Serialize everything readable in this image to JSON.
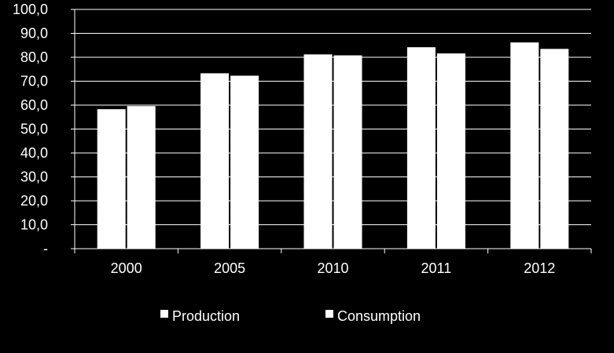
{
  "chart_data": {
    "type": "bar",
    "title": "",
    "xlabel": "",
    "ylabel": "",
    "categories": [
      "2000",
      "2005",
      "2010",
      "2011",
      "2012"
    ],
    "series": [
      {
        "name": "Production",
        "values": [
          58.3,
          73.3,
          81.2,
          84.2,
          86.2
        ]
      },
      {
        "name": "Consumption",
        "values": [
          59.6,
          72.3,
          80.8,
          81.6,
          83.5
        ]
      }
    ],
    "ylim": [
      0,
      100
    ],
    "yticks": [
      "-",
      "10,0",
      "20,0",
      "30,0",
      "40,0",
      "50,0",
      "60,0",
      "70,0",
      "80,0",
      "90,0",
      "100,0"
    ],
    "grid": true,
    "legend": "bottom",
    "colors": {
      "background": "#000000",
      "bars": "#ffffff",
      "grid": "#ffffff",
      "text": "#ffffff"
    }
  }
}
